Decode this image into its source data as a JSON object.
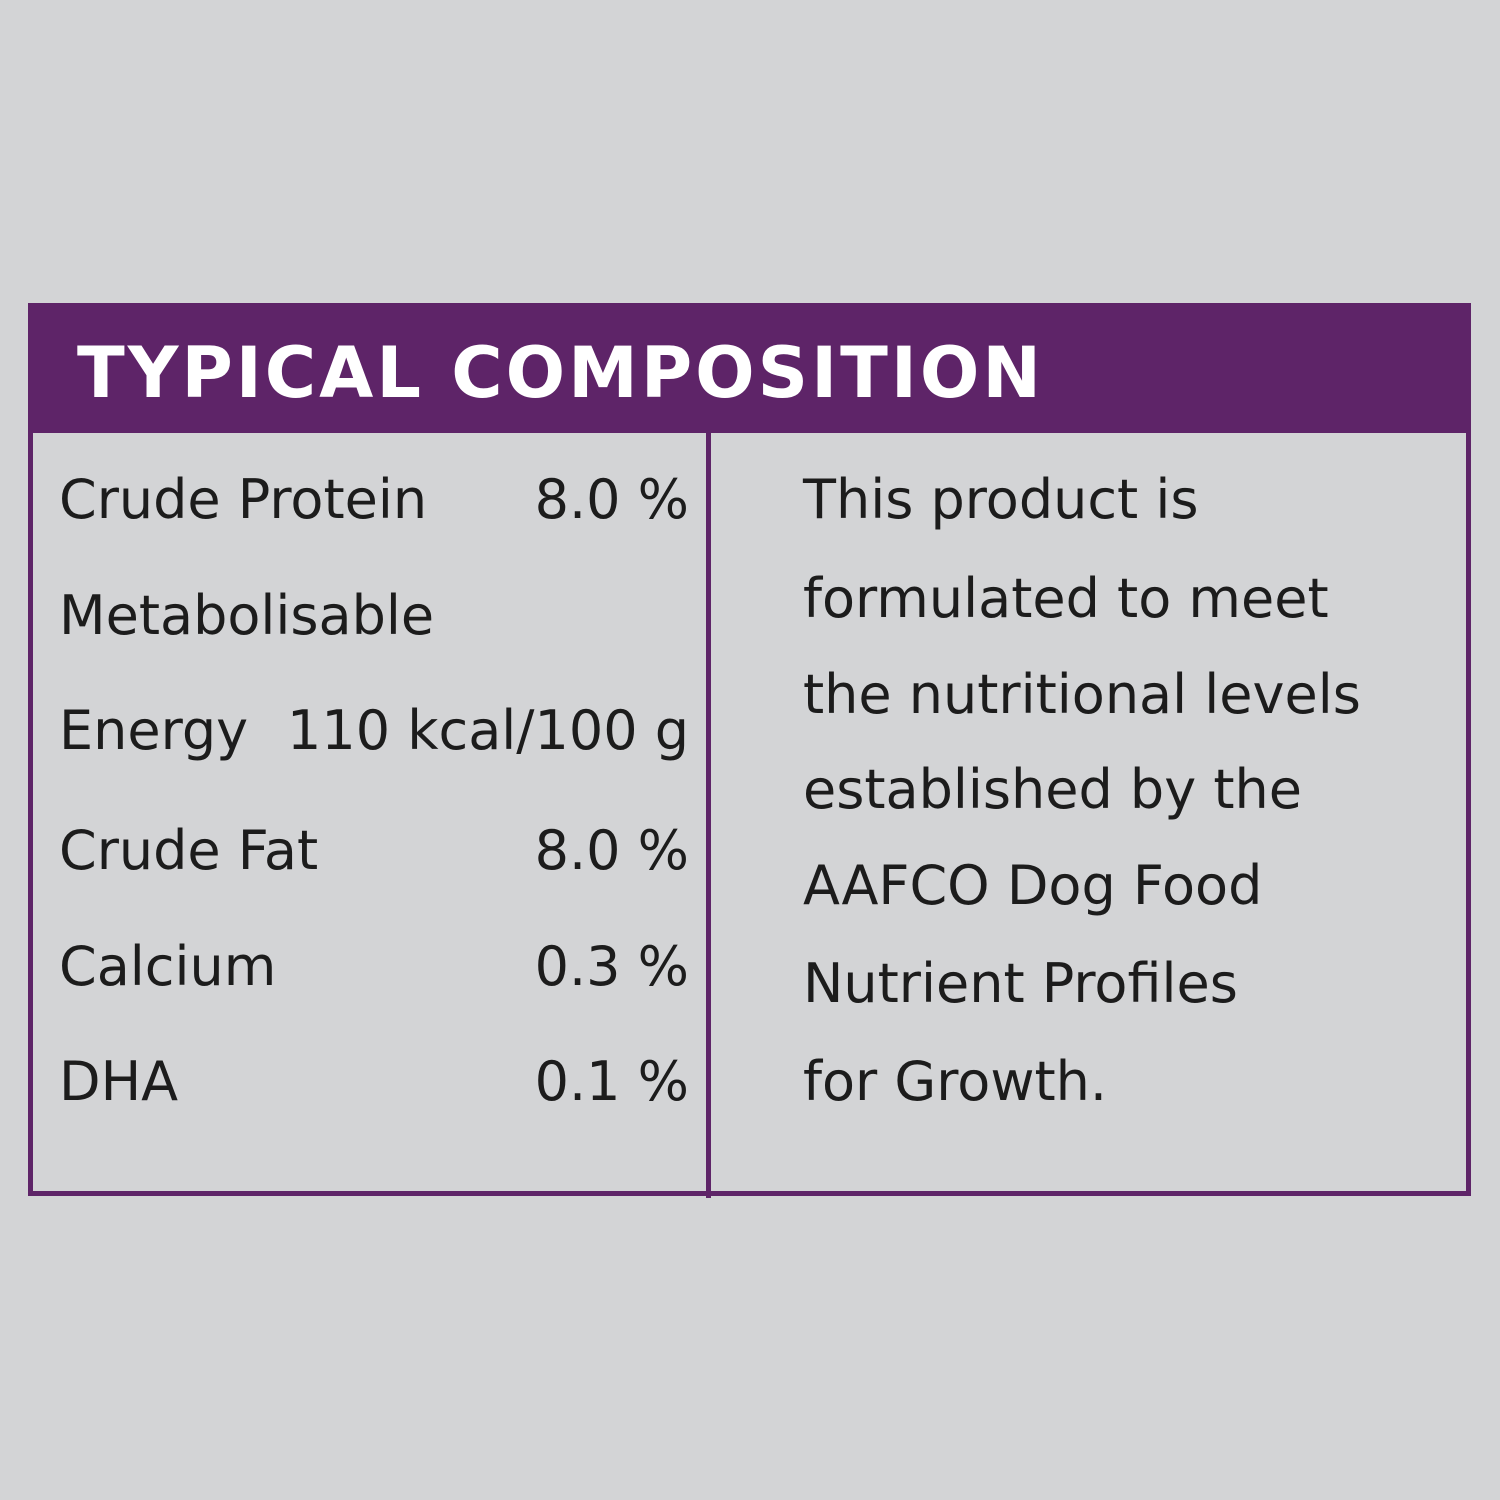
{
  "header": {
    "title": "TYPICAL COMPOSITION"
  },
  "composition": [
    {
      "label": "Crude Protein",
      "value": "8.0 %"
    },
    {
      "label": "Metabolisable",
      "value": ""
    },
    {
      "label": "Energy",
      "value": "110 kcal/100 g"
    },
    {
      "label": "Crude Fat",
      "value": "8.0 %"
    },
    {
      "label": "Calcium",
      "value": "0.3 %"
    },
    {
      "label": "DHA",
      "value": "0.1 %"
    }
  ],
  "statement": {
    "lines": [
      "This product is",
      "formulated to meet",
      "the nutritional levels",
      "established  by the",
      "AAFCO Dog Food",
      "Nutrient Profiles",
      "for Growth."
    ]
  },
  "colors": {
    "accent": "#5e2468",
    "background": "#d3d4d6",
    "text": "#1c1c1c",
    "header_text": "#ffffff"
  }
}
